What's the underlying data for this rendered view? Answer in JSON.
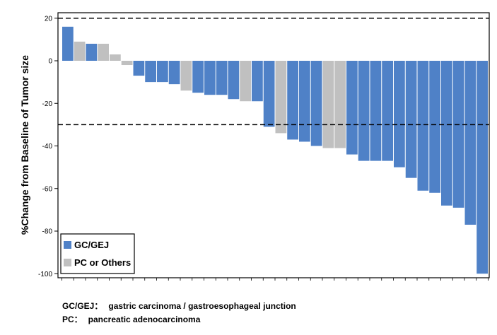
{
  "chart_data": {
    "type": "bar",
    "title": "",
    "xlabel": "",
    "ylabel": "%Change from Baseline of Tumor size",
    "ylim": [
      -100,
      22
    ],
    "yticks": [
      20,
      0,
      -20,
      -40,
      -60,
      -80,
      -100
    ],
    "reference_lines": [
      20,
      -30
    ],
    "grid": false,
    "legend_position": "bottom-left",
    "series": [
      {
        "name": "GC/GEJ",
        "color": "#4f81c7"
      },
      {
        "name": "PC or Others",
        "color": "#c0c0c0"
      }
    ],
    "bars": [
      {
        "value": 16,
        "series": "GC/GEJ"
      },
      {
        "value": 9,
        "series": "PC or Others"
      },
      {
        "value": 8,
        "series": "GC/GEJ"
      },
      {
        "value": 8,
        "series": "PC or Others"
      },
      {
        "value": 3,
        "series": "PC or Others"
      },
      {
        "value": -2,
        "series": "PC or Others"
      },
      {
        "value": -7,
        "series": "GC/GEJ"
      },
      {
        "value": -10,
        "series": "GC/GEJ"
      },
      {
        "value": -10,
        "series": "GC/GEJ"
      },
      {
        "value": -11,
        "series": "GC/GEJ"
      },
      {
        "value": -14,
        "series": "PC or Others"
      },
      {
        "value": -15,
        "series": "GC/GEJ"
      },
      {
        "value": -16,
        "series": "GC/GEJ"
      },
      {
        "value": -16,
        "series": "GC/GEJ"
      },
      {
        "value": -18,
        "series": "GC/GEJ"
      },
      {
        "value": -19,
        "series": "PC or Others"
      },
      {
        "value": -19,
        "series": "GC/GEJ"
      },
      {
        "value": -31,
        "series": "GC/GEJ"
      },
      {
        "value": -34,
        "series": "PC or Others"
      },
      {
        "value": -37,
        "series": "GC/GEJ"
      },
      {
        "value": -38,
        "series": "GC/GEJ"
      },
      {
        "value": -40,
        "series": "GC/GEJ"
      },
      {
        "value": -41,
        "series": "PC or Others"
      },
      {
        "value": -41,
        "series": "PC or Others"
      },
      {
        "value": -44,
        "series": "GC/GEJ"
      },
      {
        "value": -47,
        "series": "GC/GEJ"
      },
      {
        "value": -47,
        "series": "GC/GEJ"
      },
      {
        "value": -47,
        "series": "GC/GEJ"
      },
      {
        "value": -50,
        "series": "GC/GEJ"
      },
      {
        "value": -55,
        "series": "GC/GEJ"
      },
      {
        "value": -61,
        "series": "GC/GEJ"
      },
      {
        "value": -62,
        "series": "GC/GEJ"
      },
      {
        "value": -68,
        "series": "GC/GEJ"
      },
      {
        "value": -69,
        "series": "GC/GEJ"
      },
      {
        "value": -77,
        "series": "GC/GEJ"
      },
      {
        "value": -100,
        "series": "GC/GEJ"
      }
    ]
  },
  "footnotes": [
    {
      "key": "GC/GEJ：",
      "text": "gastric carcinoma / gastroesophageal junction"
    },
    {
      "key": "PC：",
      "text": "pancreatic adenocarcinoma"
    }
  ]
}
